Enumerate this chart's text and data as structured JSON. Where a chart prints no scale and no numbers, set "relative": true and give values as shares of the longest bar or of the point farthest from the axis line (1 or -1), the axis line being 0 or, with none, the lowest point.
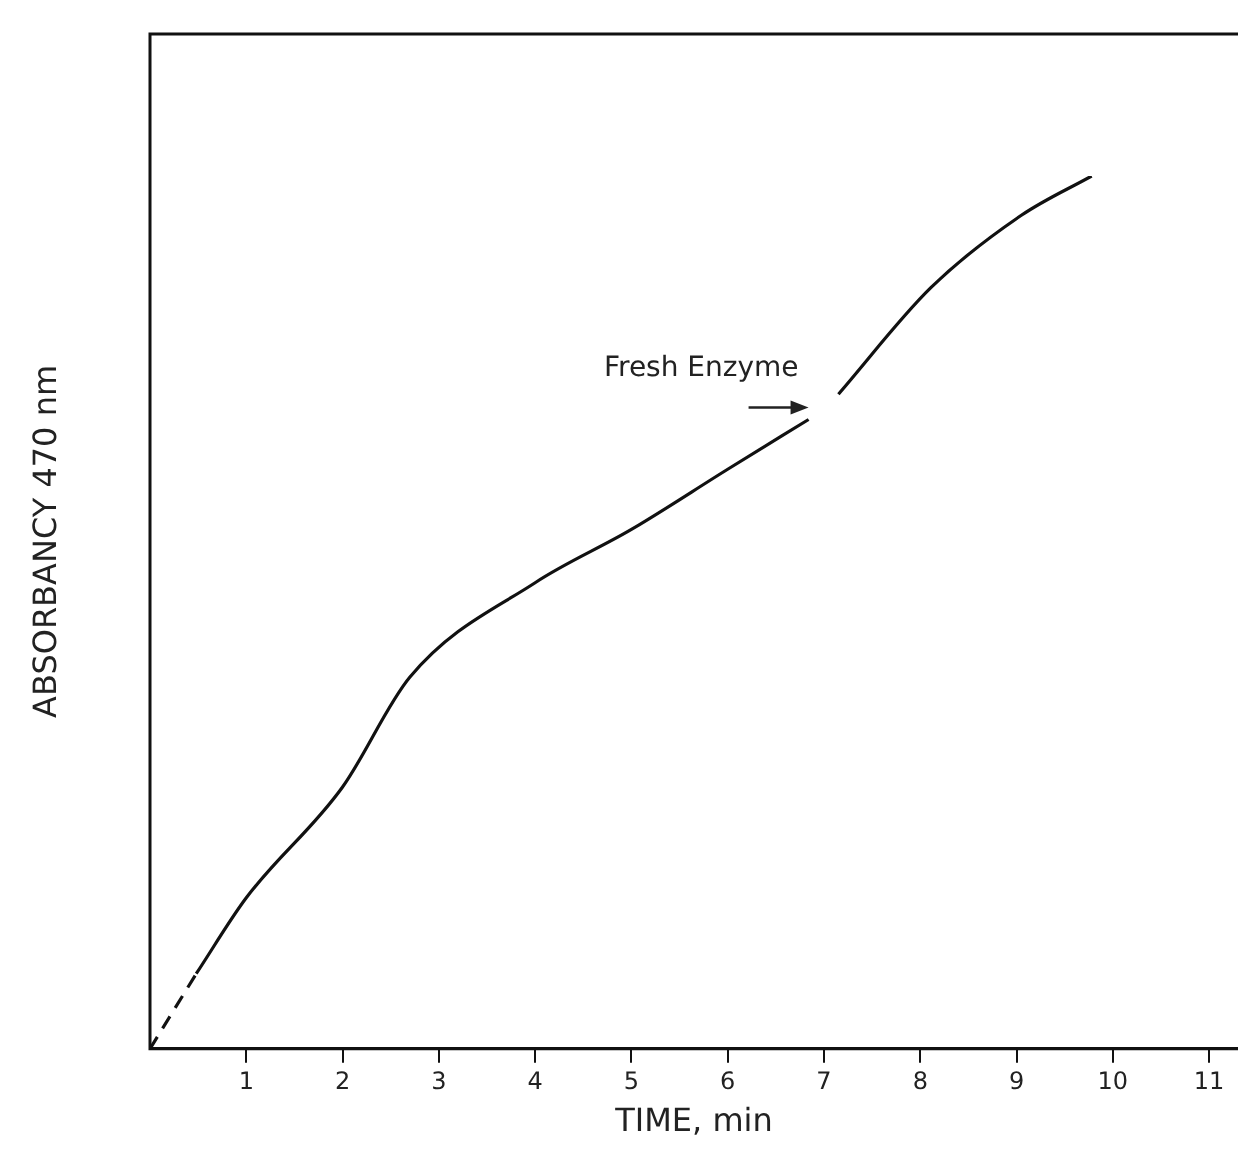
{
  "chart_data": {
    "type": "line",
    "relative": true,
    "xlabel": "TIME, min",
    "ylabel": "ABSORBANCY 470 nm",
    "xlim": [
      0,
      11.3
    ],
    "xticks": [
      1,
      2,
      3,
      4,
      5,
      6,
      7,
      8,
      9,
      10,
      11
    ],
    "grid": false,
    "legend": false,
    "marker": "none",
    "series": [
      {
        "color": "#111111",
        "line_style": "dashed",
        "x": [
          0,
          0.48
        ],
        "values": [
          0,
          0.086
        ]
      },
      {
        "color": "#111111",
        "line_style": "solid",
        "x": [
          0.48,
          1,
          2,
          2.7,
          4,
          5,
          6,
          6.84,
          7,
          7.15,
          8.11,
          9.05,
          9.78
        ],
        "values": [
          0.086,
          0.173,
          0.3,
          0.426,
          0.534,
          0.595,
          0.664,
          0.721,
          null,
          0.75,
          0.872,
          0.955,
          1
        ]
      }
    ],
    "annotations": [
      {
        "text": "Fresh Enzyme",
        "x": 6.84,
        "y": 0.721
      }
    ]
  }
}
